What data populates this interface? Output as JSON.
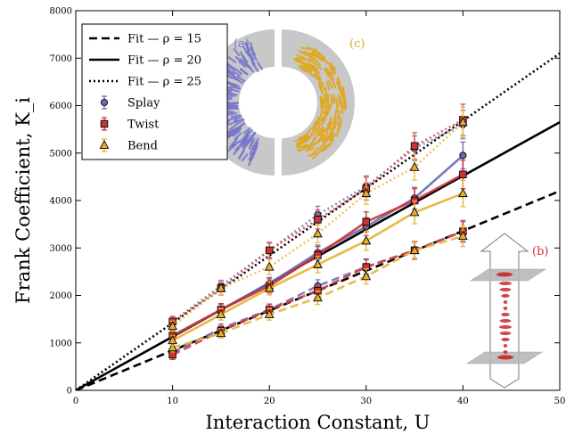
{
  "chart_data": {
    "type": "line",
    "xlabel": "Interaction Constant, U",
    "ylabel": "Frank Coefficient, K_i",
    "xlim": [
      0,
      50
    ],
    "ylim": [
      0,
      8000
    ],
    "x_ticks": [
      0,
      10,
      20,
      30,
      40,
      50
    ],
    "y_ticks": [
      0,
      1000,
      2000,
      3000,
      4000,
      5000,
      6000,
      7000,
      8000
    ],
    "grid": false,
    "legend_position": "top-left",
    "fits": [
      {
        "name": "Fit — ρ = 15",
        "style": "dashed",
        "x": [
          0,
          50
        ],
        "y": [
          0,
          4200
        ]
      },
      {
        "name": "Fit — ρ = 20",
        "style": "solid",
        "x": [
          0,
          50
        ],
        "y": [
          0,
          5650
        ]
      },
      {
        "name": "Fit — ρ = 25",
        "style": "dotted",
        "x": [
          0,
          50
        ],
        "y": [
          0,
          7100
        ]
      }
    ],
    "measured": [
      {
        "name": "Splay",
        "marker": "circle",
        "color": "#6a6ab8",
        "groups": [
          {
            "rho": 15,
            "x": [
              10,
              15,
              20,
              25,
              30,
              35,
              40
            ],
            "y": [
              800,
              1300,
              1700,
              2200,
              2600,
              2950,
              3350
            ],
            "err": [
              90,
              100,
              110,
              130,
              150,
              170,
              200
            ]
          },
          {
            "rho": 20,
            "x": [
              10,
              15,
              20,
              25,
              30,
              35,
              40
            ],
            "y": [
              1150,
              1700,
              2250,
              2900,
              3450,
              4050,
              4950
            ],
            "err": [
              100,
              110,
              130,
              160,
              190,
              230,
              280
            ]
          },
          {
            "rho": 25,
            "x": [
              10,
              15,
              20,
              25,
              30,
              35,
              40
            ],
            "y": [
              1450,
              2200,
              2950,
              3700,
              4300,
              5100,
              5600
            ],
            "err": [
              100,
              120,
              150,
              180,
              220,
              260,
              300
            ]
          }
        ]
      },
      {
        "name": "Twist",
        "marker": "square",
        "color": "#cc3333",
        "groups": [
          {
            "rho": 15,
            "x": [
              10,
              15,
              20,
              25,
              30,
              35,
              40
            ],
            "y": [
              750,
              1250,
              1700,
              2100,
              2600,
              2950,
              3350
            ],
            "err": [
              100,
              110,
              120,
              140,
              170,
              190,
              230
            ]
          },
          {
            "rho": 20,
            "x": [
              10,
              15,
              20,
              25,
              30,
              35,
              40
            ],
            "y": [
              1150,
              1700,
              2200,
              2850,
              3550,
              4000,
              4550
            ],
            "err": [
              110,
              130,
              150,
              180,
              210,
              250,
              300
            ]
          },
          {
            "rho": 25,
            "x": [
              10,
              15,
              20,
              25,
              30,
              35,
              40
            ],
            "y": [
              1450,
              2150,
              2950,
              3600,
              4250,
              5150,
              5700
            ],
            "err": [
              110,
              140,
              170,
              200,
              240,
              280,
              330
            ]
          }
        ]
      },
      {
        "name": "Bend",
        "marker": "triangle",
        "color": "#e8b030",
        "groups": [
          {
            "rho": 15,
            "x": [
              10,
              15,
              20,
              25,
              30,
              35,
              40
            ],
            "y": [
              900,
              1200,
              1600,
              1950,
              2400,
              2950,
              3250
            ],
            "err": [
              90,
              100,
              120,
              140,
              160,
              180,
              220
            ]
          },
          {
            "rho": 20,
            "x": [
              10,
              15,
              20,
              25,
              30,
              35,
              40
            ],
            "y": [
              1050,
              1600,
              2150,
              2650,
              3150,
              3750,
              4150
            ],
            "err": [
              100,
              120,
              140,
              170,
              200,
              240,
              280
            ]
          },
          {
            "rho": 25,
            "x": [
              10,
              15,
              20,
              25,
              30,
              35,
              40
            ],
            "y": [
              1350,
              2150,
              2600,
              3300,
              4150,
              4700,
              5650
            ],
            "err": [
              110,
              130,
              160,
              190,
              230,
              270,
              320
            ]
          }
        ]
      }
    ],
    "legend": [
      "Fit — ρ = 15",
      "Fit — ρ = 20",
      "Fit — ρ = 25",
      "Splay",
      "Twist",
      "Bend"
    ],
    "insets": {
      "a_label": "(a)",
      "c_label": "(c)",
      "b_label": "(b)",
      "a_color": "#7777cc",
      "c_color": "#e0a820",
      "b_color": "#cc3333"
    }
  }
}
